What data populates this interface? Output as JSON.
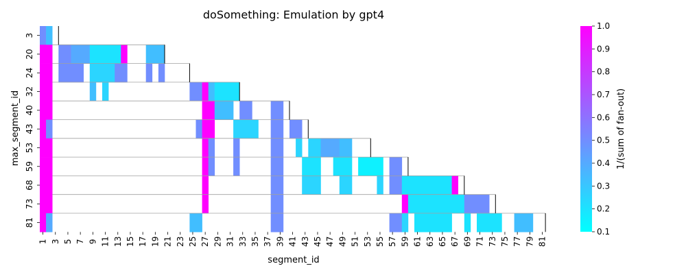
{
  "chart_data": {
    "type": "heatmap",
    "title": "doSomething: Emulation by gpt4",
    "xlabel": "segment_id",
    "ylabel": "max_segment_id",
    "colorbar_label": "1/(sum of fan-out)",
    "colormap": "cool",
    "vmin": 0.1,
    "vmax": 1.0,
    "colorbar_ticks": [
      "0.1",
      "0.2",
      "0.3",
      "0.4",
      "0.5",
      "0.6",
      "0.7",
      "0.8",
      "0.9",
      "1.0"
    ],
    "x_tick_labels": [
      "1",
      "3",
      "5",
      "7",
      "9",
      "11",
      "13",
      "15",
      "17",
      "19",
      "21",
      "23",
      "25",
      "27",
      "29",
      "31",
      "33",
      "35",
      "37",
      "39",
      "41",
      "43",
      "45",
      "47",
      "49",
      "51",
      "53",
      "55",
      "57",
      "59",
      "61",
      "63",
      "65",
      "67",
      "69",
      "71",
      "73",
      "75",
      "77",
      "79",
      "81"
    ],
    "y_categories": [
      "3",
      "20",
      "24",
      "32",
      "40",
      "43",
      "53",
      "59",
      "68",
      "73",
      "81"
    ],
    "cells": [
      [
        [
          1,
          1,
          0.5
        ],
        [
          2,
          2,
          0.33
        ]
      ],
      [
        [
          1,
          2,
          1.0
        ],
        [
          4,
          5,
          0.5
        ],
        [
          6,
          8,
          0.4
        ],
        [
          9,
          13,
          0.2
        ],
        [
          14,
          14,
          1.0
        ],
        [
          18,
          20,
          0.33
        ]
      ],
      [
        [
          1,
          2,
          1.0
        ],
        [
          4,
          7,
          0.5
        ],
        [
          9,
          12,
          0.25
        ],
        [
          13,
          14,
          0.5
        ],
        [
          18,
          18,
          0.5
        ],
        [
          20,
          20,
          0.5
        ]
      ],
      [
        [
          1,
          2,
          1.0
        ],
        [
          9,
          9,
          0.33
        ],
        [
          11,
          11,
          0.25
        ],
        [
          25,
          26,
          0.5
        ],
        [
          27,
          27,
          1.0
        ],
        [
          28,
          28,
          0.33
        ],
        [
          29,
          32,
          0.2
        ]
      ],
      [
        [
          1,
          2,
          1.0
        ],
        [
          27,
          28,
          1.0
        ],
        [
          29,
          31,
          0.33
        ],
        [
          33,
          34,
          0.5
        ],
        [
          38,
          39,
          0.5
        ]
      ],
      [
        [
          1,
          1,
          1.0
        ],
        [
          2,
          2,
          0.5
        ],
        [
          26,
          26,
          0.5
        ],
        [
          27,
          28,
          1.0
        ],
        [
          32,
          35,
          0.25
        ],
        [
          38,
          39,
          0.5
        ],
        [
          41,
          42,
          0.5
        ]
      ],
      [
        [
          1,
          2,
          1.0
        ],
        [
          27,
          27,
          1.0
        ],
        [
          28,
          28,
          0.5
        ],
        [
          32,
          32,
          0.5
        ],
        [
          38,
          39,
          0.5
        ],
        [
          42,
          42,
          0.25
        ],
        [
          44,
          45,
          0.25
        ],
        [
          46,
          48,
          0.4
        ],
        [
          49,
          50,
          0.33
        ]
      ],
      [
        [
          1,
          2,
          1.0
        ],
        [
          27,
          27,
          1.0
        ],
        [
          28,
          28,
          0.5
        ],
        [
          32,
          32,
          0.5
        ],
        [
          38,
          39,
          0.5
        ],
        [
          43,
          45,
          0.2
        ],
        [
          48,
          50,
          0.2
        ],
        [
          52,
          55,
          0.15
        ],
        [
          57,
          58,
          0.5
        ]
      ],
      [
        [
          1,
          2,
          1.0
        ],
        [
          27,
          27,
          1.0
        ],
        [
          38,
          39,
          0.5
        ],
        [
          43,
          45,
          0.25
        ],
        [
          49,
          50,
          0.25
        ],
        [
          55,
          55,
          0.25
        ],
        [
          57,
          58,
          0.5
        ],
        [
          59,
          66,
          0.2
        ],
        [
          67,
          67,
          1.0
        ]
      ],
      [
        [
          1,
          2,
          1.0
        ],
        [
          27,
          27,
          1.0
        ],
        [
          38,
          39,
          0.5
        ],
        [
          59,
          59,
          1.0
        ],
        [
          60,
          68,
          0.2
        ],
        [
          69,
          72,
          0.5
        ]
      ],
      [
        [
          1,
          1,
          1.0
        ],
        [
          2,
          2,
          0.4
        ],
        [
          25,
          26,
          0.33
        ],
        [
          38,
          39,
          0.5
        ],
        [
          57,
          58,
          0.5
        ],
        [
          59,
          59,
          0.25
        ],
        [
          61,
          66,
          0.2
        ],
        [
          69,
          69,
          0.2
        ],
        [
          71,
          74,
          0.2
        ],
        [
          77,
          79,
          0.33
        ]
      ]
    ],
    "diagonal_end_segment": [
      3,
      20,
      24,
      32,
      40,
      43,
      53,
      59,
      68,
      73,
      81
    ],
    "row_separators": true
  }
}
